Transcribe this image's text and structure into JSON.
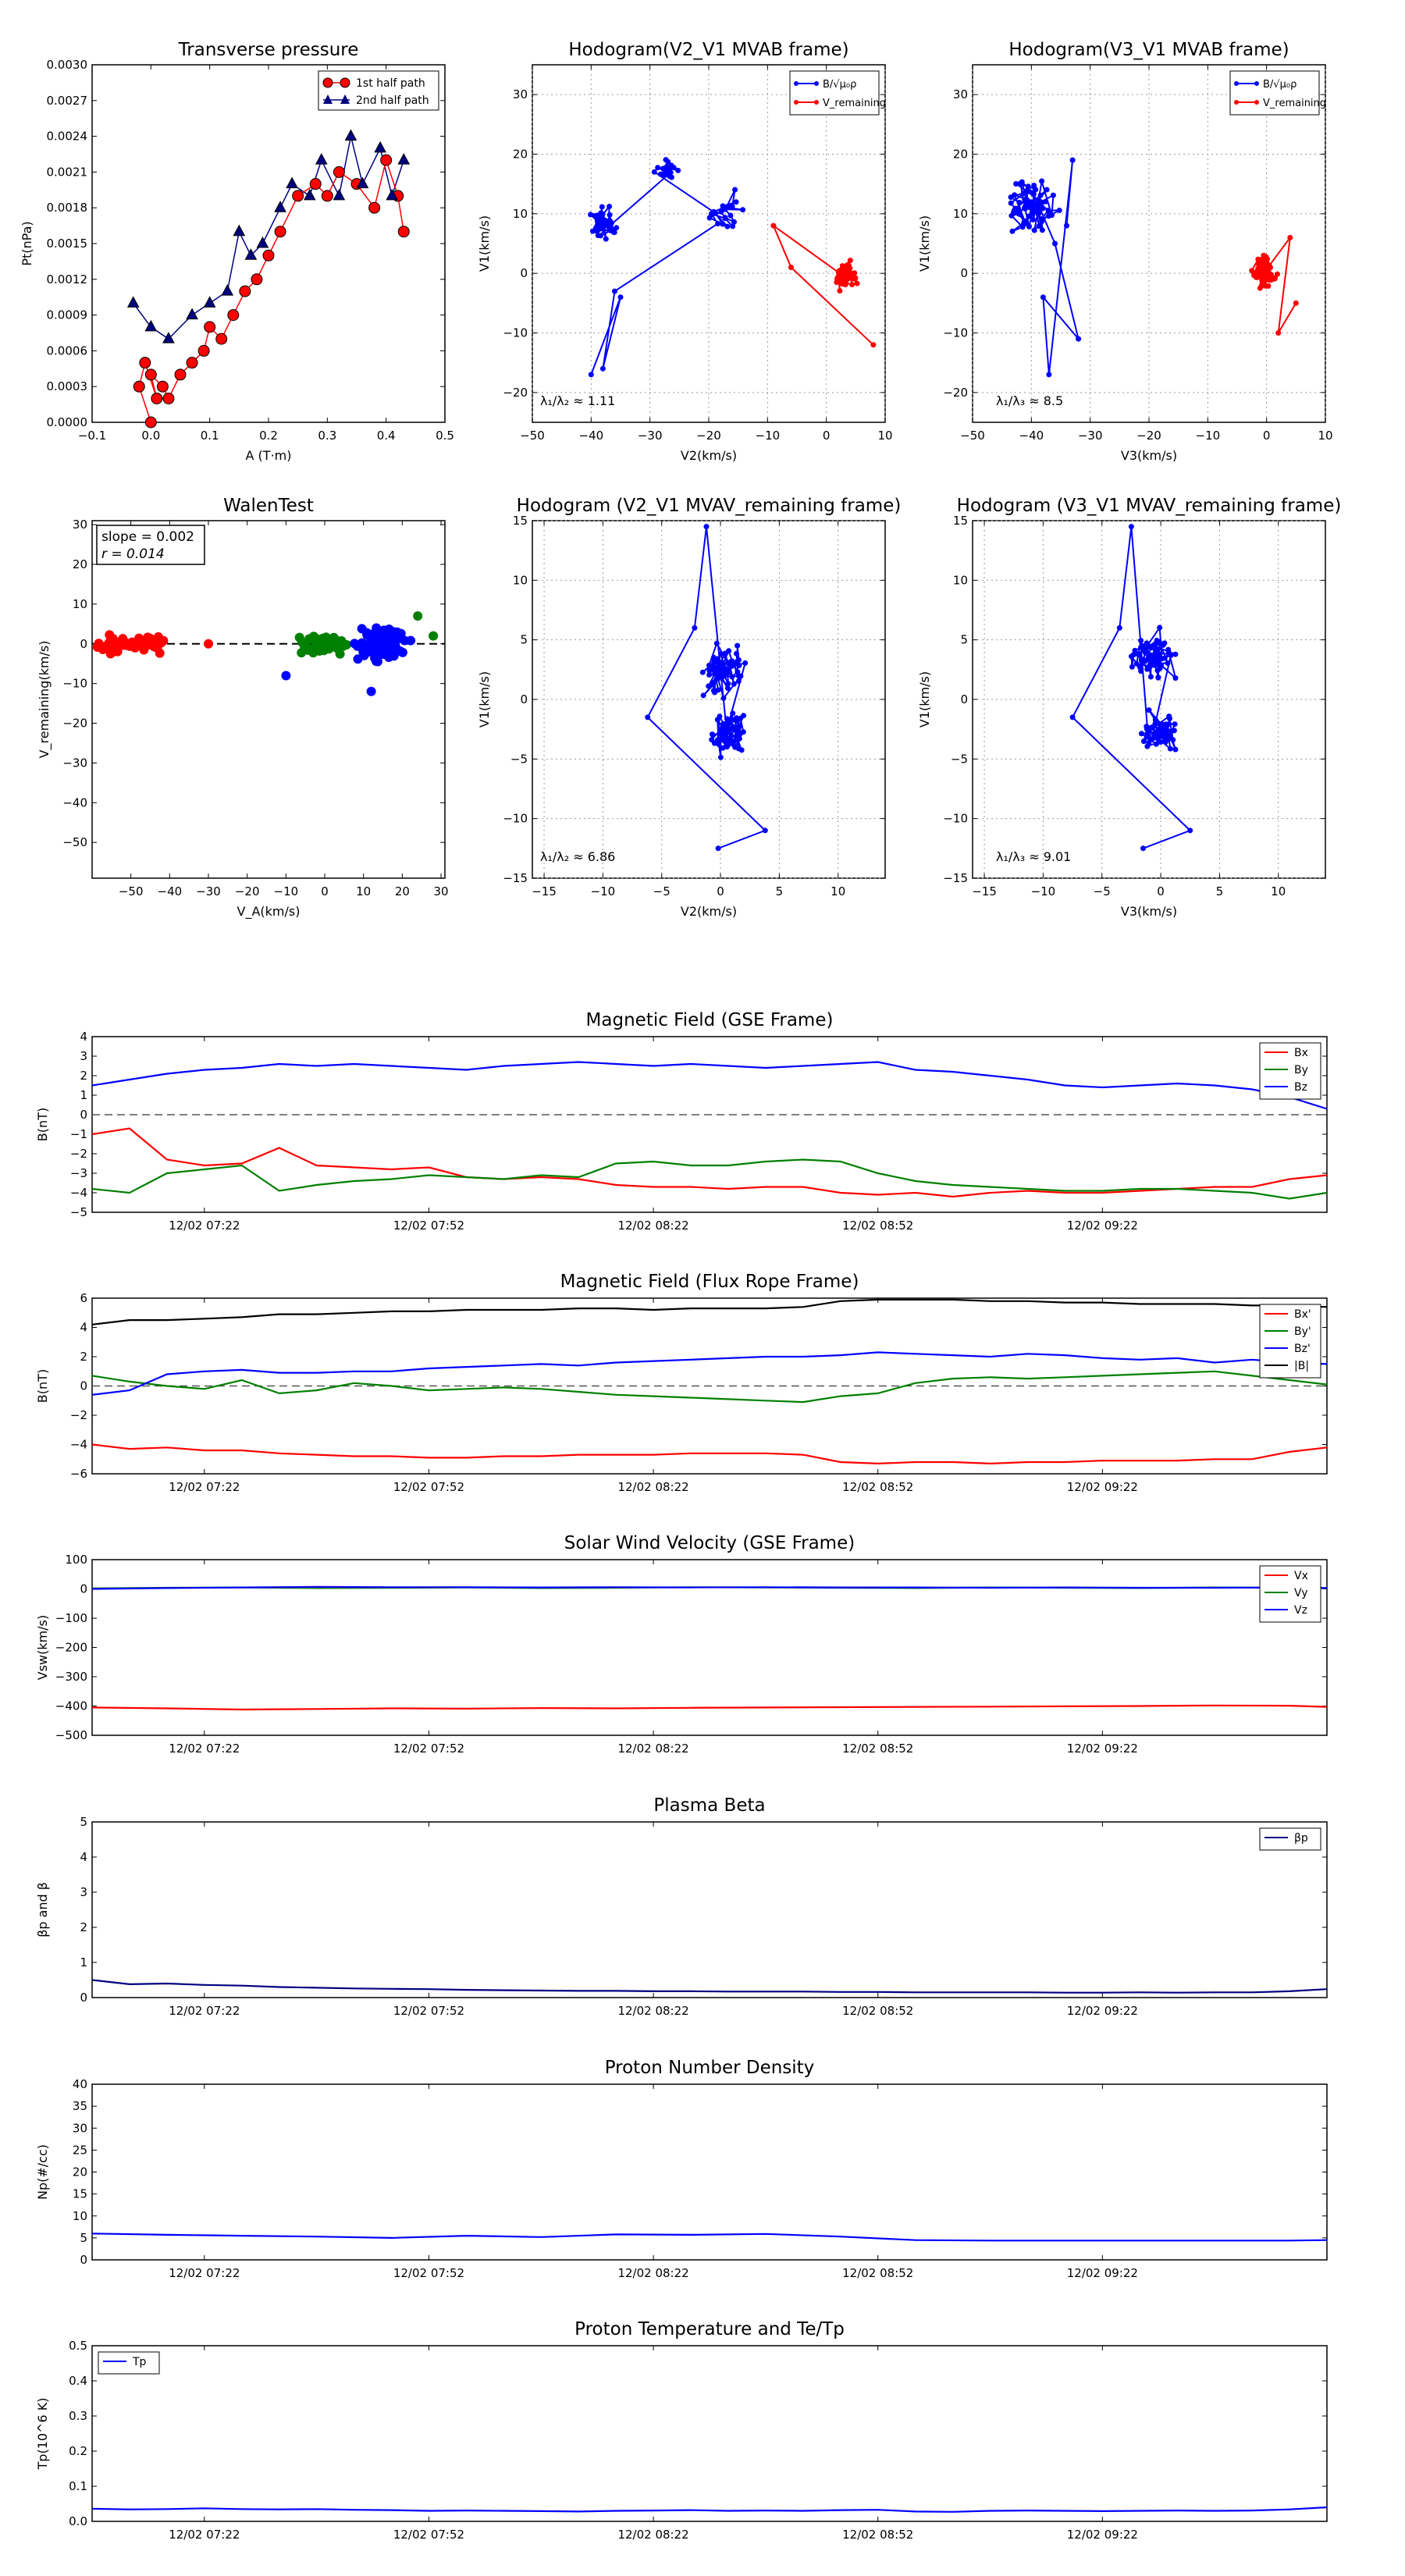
{
  "figure": {
    "top": [
      {
        "title": "Transverse pressure",
        "xlabel": "A (T·m)",
        "ylabel": "Pt(nPa)",
        "xlim": [
          -0.1,
          0.5
        ],
        "ylim": [
          0,
          0.003
        ],
        "xticks": [
          "−0.1",
          "0.0",
          "0.1",
          "0.2",
          "0.3",
          "0.4",
          "0.5"
        ],
        "yticks": [
          "0.0000",
          "0.0003",
          "0.0006",
          "0.0009",
          "0.0012",
          "0.0015",
          "0.0018",
          "0.0021",
          "0.0024",
          "0.0027",
          "0.0030"
        ],
        "legend": [
          "1st half path",
          "2nd half path"
        ]
      },
      {
        "title": "Hodogram(V2_V1 MVAB frame)",
        "xlabel": "V2(km/s)",
        "ylabel": "V1(km/s)",
        "xlim": [
          -50,
          10
        ],
        "ylim": [
          -25,
          35
        ],
        "xticks": [
          "−50",
          "−40",
          "−30",
          "−20",
          "−10",
          "0",
          "10"
        ],
        "yticks": [
          "−20",
          "−10",
          "0",
          "10",
          "20",
          "30"
        ],
        "legend": [
          "B/√μ₀ρ",
          "V_remaining"
        ],
        "annotation": "λ₁/λ₂ ≈ 1.11"
      },
      {
        "title": "Hodogram(V3_V1 MVAB frame)",
        "xlabel": "V3(km/s)",
        "ylabel": "V1(km/s)",
        "xlim": [
          -50,
          10
        ],
        "ylim": [
          -25,
          35
        ],
        "xticks": [
          "−50",
          "−40",
          "−30",
          "−20",
          "−10",
          "0",
          "10"
        ],
        "yticks": [
          "−20",
          "−10",
          "0",
          "10",
          "20",
          "30"
        ],
        "legend": [
          "B/√μ₀ρ",
          "V_remaining"
        ],
        "annotation": "λ₁/λ₃ ≈ 8.5"
      },
      {
        "title": "WalenTest",
        "xlabel": "V_A(km/s)",
        "ylabel": "V_remaining(km/s)",
        "xlim": [
          -60,
          31
        ],
        "ylim": [
          -59,
          31
        ],
        "xticks": [
          "−50",
          "−40",
          "−30",
          "−20",
          "−10",
          "0",
          "10",
          "20",
          "30"
        ],
        "yticks": [
          "−50",
          "−40",
          "−30",
          "−20",
          "−10",
          "0",
          "10",
          "20",
          "30"
        ],
        "box": [
          "slope = 0.002",
          "r = 0.014"
        ]
      },
      {
        "title": "Hodogram (V2_V1 MVAV_remaining frame)",
        "xlabel": "V2(km/s)",
        "ylabel": "V1(km/s)",
        "xlim": [
          -16,
          14
        ],
        "ylim": [
          -15,
          15
        ],
        "xticks": [
          "−15",
          "−10",
          "−5",
          "0",
          "5",
          "10"
        ],
        "yticks": [
          "−15",
          "−10",
          "−5",
          "0",
          "5",
          "10",
          "15"
        ],
        "annotation": "λ₁/λ₂ ≈ 6.86"
      },
      {
        "title": "Hodogram (V3_V1 MVAV_remaining frame)",
        "xlabel": "V3(km/s)",
        "ylabel": "V1(km/s)",
        "xlim": [
          -16,
          14
        ],
        "ylim": [
          -15,
          15
        ],
        "xticks": [
          "−15",
          "−10",
          "−5",
          "0",
          "5",
          "10"
        ],
        "yticks": [
          "−15",
          "−10",
          "−5",
          "0",
          "5",
          "10",
          "15"
        ],
        "annotation": "λ₁/λ₃ ≈ 9.01"
      }
    ],
    "series_colors": {
      "red": "#ff0000",
      "green": "#008000",
      "blue": "#0000ff",
      "black": "#000000",
      "navy": "#000080"
    },
    "time_ticks": [
      "12/02 07:22",
      "12/02 07:52",
      "12/02 08:22",
      "12/02 08:52",
      "12/02 09:22"
    ]
  },
  "chart_data": [
    {
      "type": "scatter",
      "title": "Transverse pressure",
      "xlabel": "A (T·m)",
      "ylabel": "Pt(nPa)",
      "xlim": [
        -0.1,
        0.5
      ],
      "ylim": [
        0,
        0.003
      ],
      "series": [
        {
          "name": "1st half path",
          "x": [
            0.0,
            -0.02,
            -0.01,
            0.01,
            0.0,
            0.02,
            0.03,
            0.05,
            0.07,
            0.09,
            0.1,
            0.12,
            0.14,
            0.16,
            0.18,
            0.2,
            0.22,
            0.25,
            0.28,
            0.3,
            0.32,
            0.35,
            0.38,
            0.4,
            0.42,
            0.43
          ],
          "y": [
            0.0,
            0.0003,
            0.0005,
            0.0002,
            0.0004,
            0.0003,
            0.0002,
            0.0004,
            0.0005,
            0.0006,
            0.0008,
            0.0007,
            0.0009,
            0.0011,
            0.0012,
            0.0014,
            0.0016,
            0.0019,
            0.002,
            0.0019,
            0.0021,
            0.002,
            0.0018,
            0.0022,
            0.0019,
            0.0016
          ]
        },
        {
          "name": "2nd half path",
          "x": [
            -0.03,
            0.0,
            0.03,
            0.07,
            0.1,
            0.13,
            0.15,
            0.17,
            0.19,
            0.22,
            0.24,
            0.27,
            0.29,
            0.32,
            0.34,
            0.36,
            0.39,
            0.41,
            0.43
          ],
          "y": [
            0.001,
            0.0008,
            0.0007,
            0.0009,
            0.001,
            0.0011,
            0.0016,
            0.0014,
            0.0015,
            0.0018,
            0.002,
            0.0019,
            0.0022,
            0.0019,
            0.0024,
            0.002,
            0.0023,
            0.0019,
            0.0022
          ]
        }
      ]
    },
    {
      "type": "line",
      "title": "Magnetic Field (GSE Frame)",
      "ylabel": "B(nT)",
      "ylim": [
        -5,
        4
      ],
      "x": [
        0,
        5,
        10,
        15,
        20,
        25,
        30,
        35,
        40,
        45,
        50,
        55,
        60,
        65,
        70,
        75,
        80,
        85,
        90,
        95,
        100,
        105,
        110,
        115,
        120,
        125,
        130,
        135,
        140,
        145,
        150,
        155,
        160,
        165
      ],
      "series": [
        {
          "name": "Bx",
          "values": [
            -1.0,
            -0.7,
            -2.3,
            -2.6,
            -2.5,
            -1.7,
            -2.6,
            -2.7,
            -2.8,
            -2.7,
            -3.2,
            -3.3,
            -3.2,
            -3.3,
            -3.6,
            -3.7,
            -3.7,
            -3.8,
            -3.7,
            -3.7,
            -4.0,
            -4.1,
            -4.0,
            -4.2,
            -4.0,
            -3.9,
            -4.0,
            -4.0,
            -3.9,
            -3.8,
            -3.7,
            -3.7,
            -3.3,
            -3.1
          ]
        },
        {
          "name": "By",
          "values": [
            -3.8,
            -4.0,
            -3.0,
            -2.8,
            -2.6,
            -3.9,
            -3.6,
            -3.4,
            -3.3,
            -3.1,
            -3.2,
            -3.3,
            -3.1,
            -3.2,
            -2.5,
            -2.4,
            -2.6,
            -2.6,
            -2.4,
            -2.3,
            -2.4,
            -3.0,
            -3.4,
            -3.6,
            -3.7,
            -3.8,
            -3.9,
            -3.9,
            -3.8,
            -3.8,
            -3.9,
            -4.0,
            -4.3,
            -4.0
          ]
        },
        {
          "name": "Bz",
          "values": [
            1.5,
            1.8,
            2.1,
            2.3,
            2.4,
            2.6,
            2.5,
            2.6,
            2.5,
            2.4,
            2.3,
            2.5,
            2.6,
            2.7,
            2.6,
            2.5,
            2.6,
            2.5,
            2.4,
            2.5,
            2.6,
            2.7,
            2.3,
            2.2,
            2.0,
            1.8,
            1.5,
            1.4,
            1.5,
            1.6,
            1.5,
            1.3,
            0.9,
            0.3
          ]
        }
      ]
    },
    {
      "type": "line",
      "title": "Magnetic Field (Flux Rope Frame)",
      "ylabel": "B(nT)",
      "ylim": [
        -6,
        6
      ],
      "x": [
        0,
        5,
        10,
        15,
        20,
        25,
        30,
        35,
        40,
        45,
        50,
        55,
        60,
        65,
        70,
        75,
        80,
        85,
        90,
        95,
        100,
        105,
        110,
        115,
        120,
        125,
        130,
        135,
        140,
        145,
        150,
        155,
        160,
        165
      ],
      "series": [
        {
          "name": "Bx'",
          "values": [
            -4.0,
            -4.3,
            -4.2,
            -4.4,
            -4.4,
            -4.6,
            -4.7,
            -4.8,
            -4.8,
            -4.9,
            -4.9,
            -4.8,
            -4.8,
            -4.7,
            -4.7,
            -4.7,
            -4.6,
            -4.6,
            -4.6,
            -4.7,
            -5.2,
            -5.3,
            -5.2,
            -5.2,
            -5.3,
            -5.2,
            -5.2,
            -5.1,
            -5.1,
            -5.1,
            -5.0,
            -5.0,
            -4.5,
            -4.2
          ]
        },
        {
          "name": "By'",
          "values": [
            0.7,
            0.3,
            0.0,
            -0.2,
            0.4,
            -0.5,
            -0.3,
            0.2,
            0.0,
            -0.3,
            -0.2,
            -0.1,
            -0.2,
            -0.4,
            -0.6,
            -0.7,
            -0.8,
            -0.9,
            -1.0,
            -1.1,
            -0.7,
            -0.5,
            0.2,
            0.5,
            0.6,
            0.5,
            0.6,
            0.7,
            0.8,
            0.9,
            1.0,
            0.7,
            0.4,
            0.1
          ]
        },
        {
          "name": "Bz'",
          "values": [
            -0.6,
            -0.3,
            0.8,
            1.0,
            1.1,
            0.9,
            0.9,
            1.0,
            1.0,
            1.2,
            1.3,
            1.4,
            1.5,
            1.4,
            1.6,
            1.7,
            1.8,
            1.9,
            2.0,
            2.0,
            2.1,
            2.3,
            2.2,
            2.1,
            2.0,
            2.2,
            2.1,
            1.9,
            1.8,
            1.9,
            1.6,
            1.8,
            1.6,
            1.5
          ]
        },
        {
          "name": "|B|",
          "values": [
            4.2,
            4.5,
            4.5,
            4.6,
            4.7,
            4.9,
            4.9,
            5.0,
            5.1,
            5.1,
            5.2,
            5.2,
            5.2,
            5.3,
            5.3,
            5.2,
            5.3,
            5.3,
            5.3,
            5.4,
            5.8,
            5.9,
            5.9,
            5.9,
            5.8,
            5.8,
            5.7,
            5.7,
            5.6,
            5.6,
            5.6,
            5.5,
            5.5,
            5.4
          ]
        }
      ]
    },
    {
      "type": "line",
      "title": "Solar Wind Velocity (GSE Frame)",
      "ylabel": "Vsw(km/s)",
      "ylim": [
        -500,
        100
      ],
      "x": [
        0,
        10,
        20,
        30,
        40,
        50,
        60,
        70,
        80,
        90,
        100,
        110,
        120,
        130,
        140,
        150,
        160,
        165
      ],
      "series": [
        {
          "name": "Vx",
          "values": [
            -405,
            -408,
            -412,
            -410,
            -408,
            -409,
            -407,
            -408,
            -406,
            -405,
            -404,
            -403,
            -402,
            -401,
            -400,
            -398,
            -399,
            -403
          ]
        },
        {
          "name": "Vy",
          "values": [
            2,
            4,
            5,
            3,
            4,
            5,
            3,
            4,
            6,
            5,
            4,
            3,
            5,
            4,
            3,
            5,
            4,
            3
          ]
        },
        {
          "name": "Vz",
          "values": [
            0,
            3,
            5,
            7,
            6,
            6,
            5,
            6,
            5,
            6,
            5,
            5,
            4,
            5,
            4,
            4,
            5,
            3
          ]
        }
      ]
    },
    {
      "type": "line",
      "title": "Plasma Beta",
      "ylabel": "βp and β",
      "ylim": [
        0,
        5
      ],
      "x": [
        0,
        5,
        10,
        15,
        20,
        25,
        30,
        35,
        40,
        45,
        50,
        55,
        60,
        65,
        70,
        75,
        80,
        85,
        90,
        95,
        100,
        105,
        110,
        115,
        120,
        125,
        130,
        135,
        140,
        145,
        150,
        155,
        160,
        165
      ],
      "series": [
        {
          "name": "βp",
          "values": [
            0.5,
            0.38,
            0.4,
            0.36,
            0.34,
            0.3,
            0.28,
            0.26,
            0.25,
            0.24,
            0.22,
            0.21,
            0.2,
            0.19,
            0.19,
            0.18,
            0.18,
            0.17,
            0.17,
            0.17,
            0.16,
            0.16,
            0.15,
            0.15,
            0.15,
            0.15,
            0.14,
            0.14,
            0.15,
            0.14,
            0.15,
            0.15,
            0.18,
            0.24
          ]
        }
      ]
    },
    {
      "type": "line",
      "title": "Proton Number Density",
      "ylabel": "Np(#/cc)",
      "ylim": [
        0,
        40
      ],
      "x": [
        0,
        10,
        20,
        30,
        40,
        50,
        60,
        70,
        80,
        90,
        100,
        110,
        120,
        130,
        140,
        150,
        160,
        165
      ],
      "series": [
        {
          "name": "Np",
          "values": [
            6.0,
            5.7,
            5.5,
            5.3,
            5.0,
            5.5,
            5.2,
            5.8,
            5.7,
            5.9,
            5.3,
            4.5,
            4.4,
            4.4,
            4.4,
            4.4,
            4.4,
            4.5
          ]
        }
      ]
    },
    {
      "type": "line",
      "title": "Proton Temperature and Te/Tp",
      "ylabel": "Tp(10^6 K)",
      "ylim": [
        0,
        0.5
      ],
      "x": [
        0,
        5,
        10,
        15,
        20,
        25,
        30,
        35,
        40,
        45,
        50,
        55,
        60,
        65,
        70,
        75,
        80,
        85,
        90,
        95,
        100,
        105,
        110,
        115,
        120,
        125,
        130,
        135,
        140,
        145,
        150,
        155,
        160,
        165
      ],
      "series": [
        {
          "name": "Tp",
          "values": [
            0.036,
            0.034,
            0.035,
            0.037,
            0.035,
            0.034,
            0.035,
            0.033,
            0.032,
            0.03,
            0.031,
            0.03,
            0.029,
            0.028,
            0.03,
            0.031,
            0.032,
            0.03,
            0.031,
            0.03,
            0.032,
            0.033,
            0.028,
            0.027,
            0.03,
            0.031,
            0.03,
            0.029,
            0.03,
            0.031,
            0.03,
            0.031,
            0.034,
            0.04
          ]
        }
      ]
    }
  ],
  "texts": {
    "legend_bx": "Bx",
    "legend_by": "By",
    "legend_bz": "Bz",
    "legend_bxp": "Bx'",
    "legend_byp": "By'",
    "legend_bzp": "Bz'",
    "legend_bmag": "|B|",
    "legend_vx": "Vx",
    "legend_vy": "Vy",
    "legend_vz": "Vz",
    "legend_beta": "βp",
    "legend_tp": "Tp",
    "ts_ylabel_b": "B(nT)",
    "ts_ylabel_v": "Vsw(km/s)",
    "ts_ylabel_beta": "βp and β",
    "ts_ylabel_np": "Np(#/cc)",
    "ts_ylabel_tp": "Tp(10^6 K)"
  }
}
